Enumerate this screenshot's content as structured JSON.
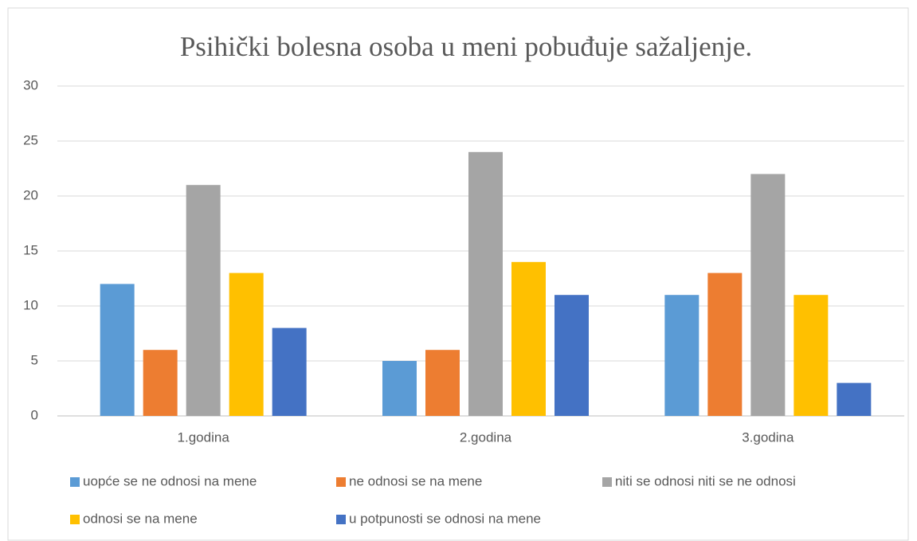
{
  "chart_data": {
    "type": "bar",
    "title": "Psihički bolesna osoba u meni pobuđuje sažaljenje.",
    "categories": [
      "1.godina",
      "2.godina",
      "3.godina"
    ],
    "series": [
      {
        "name": "uopće se ne odnosi na mene",
        "color": "#5b9bd5",
        "values": [
          12,
          5,
          11
        ]
      },
      {
        "name": "ne odnosi se na mene",
        "color": "#ed7d31",
        "values": [
          6,
          6,
          13
        ]
      },
      {
        "name": "niti se odnosi niti se ne odnosi",
        "color": "#a5a5a5",
        "values": [
          21,
          24,
          22
        ]
      },
      {
        "name": "odnosi se na mene",
        "color": "#ffc000",
        "values": [
          13,
          14,
          11
        ]
      },
      {
        "name": "u potpunosti se odnosi na mene",
        "color": "#4472c4",
        "values": [
          8,
          11,
          3
        ]
      }
    ],
    "ylim": [
      0,
      30
    ],
    "yticks": [
      0,
      5,
      10,
      15,
      20,
      25,
      30
    ],
    "grid": true,
    "legend": "bottom"
  }
}
